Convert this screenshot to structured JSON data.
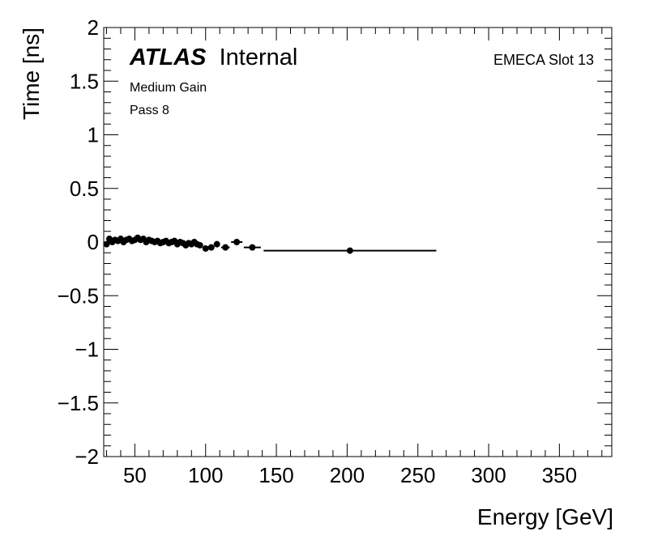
{
  "chart_data": {
    "type": "scatter",
    "xlabel": "Energy [GeV]",
    "ylabel": "Time [ns]",
    "xlim": [
      28,
      387
    ],
    "ylim": [
      -2,
      2
    ],
    "x_ticks": [
      50,
      100,
      150,
      200,
      250,
      300,
      350
    ],
    "y_ticks": [
      {
        "v": 2,
        "label": "2"
      },
      {
        "v": 1.5,
        "label": "1.5"
      },
      {
        "v": 1,
        "label": "1"
      },
      {
        "v": 0.5,
        "label": "0.5"
      },
      {
        "v": 0,
        "label": "0"
      },
      {
        "v": -0.5,
        "label": "−0.5"
      },
      {
        "v": -1,
        "label": "−1"
      },
      {
        "v": -1.5,
        "label": "−1.5"
      },
      {
        "v": -2,
        "label": "−2"
      }
    ],
    "annotations": {
      "atlas": "ATLAS",
      "internal": "Internal",
      "region": "EMECA Slot 13",
      "gain": "Medium Gain",
      "pass": "Pass 8"
    },
    "points": [
      {
        "x": 30,
        "xerr": 1,
        "y": -0.02
      },
      {
        "x": 32,
        "xerr": 1,
        "y": 0.03
      },
      {
        "x": 34,
        "xerr": 1,
        "y": 0.0
      },
      {
        "x": 36,
        "xerr": 1,
        "y": 0.02
      },
      {
        "x": 38,
        "xerr": 1,
        "y": 0.01
      },
      {
        "x": 40,
        "xerr": 1,
        "y": 0.03
      },
      {
        "x": 42,
        "xerr": 1,
        "y": 0.0
      },
      {
        "x": 44,
        "xerr": 1,
        "y": 0.02
      },
      {
        "x": 46,
        "xerr": 1,
        "y": 0.03
      },
      {
        "x": 48,
        "xerr": 1,
        "y": 0.01
      },
      {
        "x": 50,
        "xerr": 1,
        "y": 0.02
      },
      {
        "x": 52,
        "xerr": 1,
        "y": 0.04
      },
      {
        "x": 54,
        "xerr": 1,
        "y": 0.02
      },
      {
        "x": 56,
        "xerr": 1,
        "y": 0.03
      },
      {
        "x": 58,
        "xerr": 1,
        "y": 0.0
      },
      {
        "x": 60,
        "xerr": 1,
        "y": 0.02
      },
      {
        "x": 62,
        "xerr": 1,
        "y": 0.01
      },
      {
        "x": 64,
        "xerr": 1,
        "y": 0.0
      },
      {
        "x": 66,
        "xerr": 1,
        "y": 0.01
      },
      {
        "x": 68,
        "xerr": 1,
        "y": -0.01
      },
      {
        "x": 70,
        "xerr": 1,
        "y": 0.0
      },
      {
        "x": 72,
        "xerr": 1,
        "y": 0.01
      },
      {
        "x": 74,
        "xerr": 1,
        "y": -0.01
      },
      {
        "x": 76,
        "xerr": 1,
        "y": 0.0
      },
      {
        "x": 78,
        "xerr": 1,
        "y": 0.01
      },
      {
        "x": 80,
        "xerr": 1,
        "y": -0.02
      },
      {
        "x": 82,
        "xerr": 1,
        "y": 0.0
      },
      {
        "x": 84,
        "xerr": 1,
        "y": -0.01
      },
      {
        "x": 86,
        "xerr": 1,
        "y": -0.03
      },
      {
        "x": 88,
        "xerr": 1,
        "y": -0.01
      },
      {
        "x": 90,
        "xerr": 1,
        "y": -0.02
      },
      {
        "x": 92,
        "xerr": 1,
        "y": 0.0
      },
      {
        "x": 94,
        "xerr": 1,
        "y": -0.02
      },
      {
        "x": 96,
        "xerr": 1,
        "y": -0.03
      },
      {
        "x": 100,
        "xerr": 2,
        "y": -0.06
      },
      {
        "x": 104,
        "xerr": 2,
        "y": -0.05
      },
      {
        "x": 108,
        "xerr": 2,
        "y": -0.02
      },
      {
        "x": 114,
        "xerr": 3,
        "y": -0.05
      },
      {
        "x": 122,
        "xerr": 4,
        "y": 0.0
      },
      {
        "x": 133,
        "xerr": 6,
        "y": -0.05
      },
      {
        "x": 202,
        "xerr": 61,
        "y": -0.08
      }
    ]
  }
}
